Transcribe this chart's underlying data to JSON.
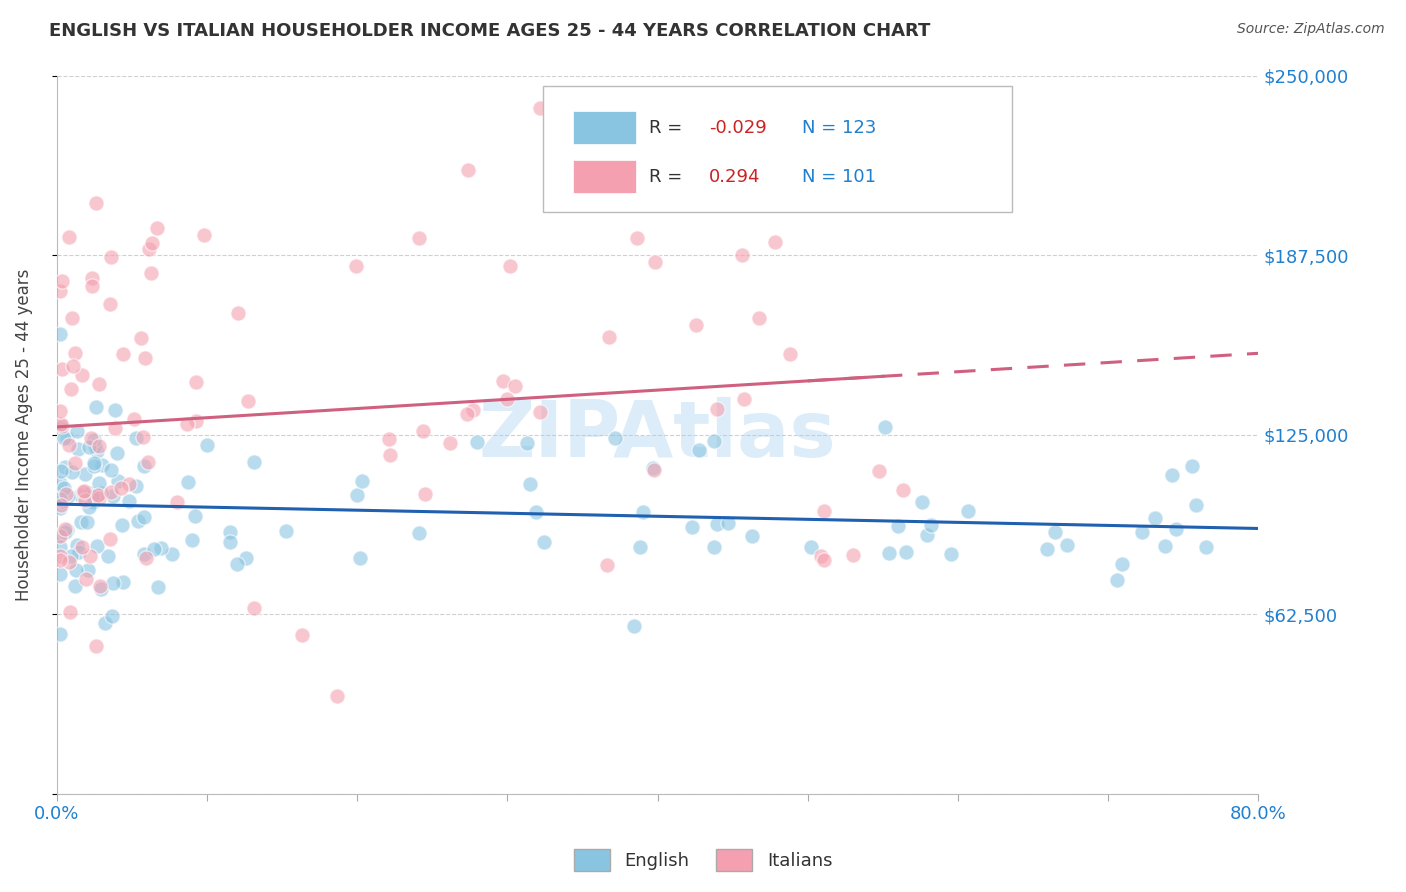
{
  "title": "ENGLISH VS ITALIAN HOUSEHOLDER INCOME AGES 25 - 44 YEARS CORRELATION CHART",
  "source": "Source: ZipAtlas.com",
  "ylabel": "Householder Income Ages 25 - 44 years",
  "xlim": [
    0.0,
    0.8
  ],
  "ylim": [
    0,
    250000
  ],
  "yticks": [
    0,
    62500,
    125000,
    187500,
    250000
  ],
  "ytick_labels": [
    "",
    "$62,500",
    "$125,000",
    "$187,500",
    "$250,000"
  ],
  "xticks": [
    0.0,
    0.1,
    0.2,
    0.3,
    0.4,
    0.5,
    0.6,
    0.7,
    0.8
  ],
  "xtick_labels": [
    "0.0%",
    "",
    "",
    "",
    "",
    "",
    "",
    "",
    "80.0%"
  ],
  "english_color": "#89c4e1",
  "italian_color": "#f4a0b0",
  "english_R": -0.029,
  "english_N": 123,
  "italian_R": 0.294,
  "italian_N": 101,
  "trend_english_color": "#2060b0",
  "trend_italian_color": "#d06080",
  "watermark": "ZIPAtlas",
  "watermark_color": "#a8d0ee",
  "background_color": "#ffffff",
  "legend_label_english": "English",
  "legend_label_italian": "Italians",
  "r_label_color": "#cc2222",
  "n_label_color": "#2080d0",
  "yaxis_label_color": "#2080d0",
  "xaxis_label_color": "#2080d0"
}
